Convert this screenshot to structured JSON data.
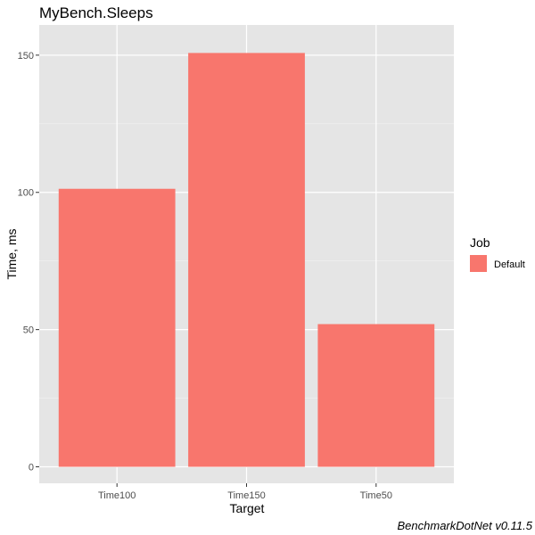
{
  "chart_data": {
    "type": "bar",
    "title": "MyBench.Sleeps",
    "xlabel": "Target",
    "ylabel": "Time, ms",
    "categories": [
      "Time100",
      "Time150",
      "Time50"
    ],
    "series": [
      {
        "name": "Default",
        "values": [
          101.3,
          150.8,
          52.0
        ],
        "color": "#f8766d"
      }
    ],
    "ylim": [
      -6,
      161
    ],
    "yticks": [
      0,
      50,
      100,
      150
    ],
    "grid": true,
    "panel_background": "#e5e5e5",
    "legend": {
      "title": "Job",
      "position": "right",
      "entries": [
        "Default"
      ]
    },
    "caption": "BenchmarkDotNet v0.11.5"
  }
}
